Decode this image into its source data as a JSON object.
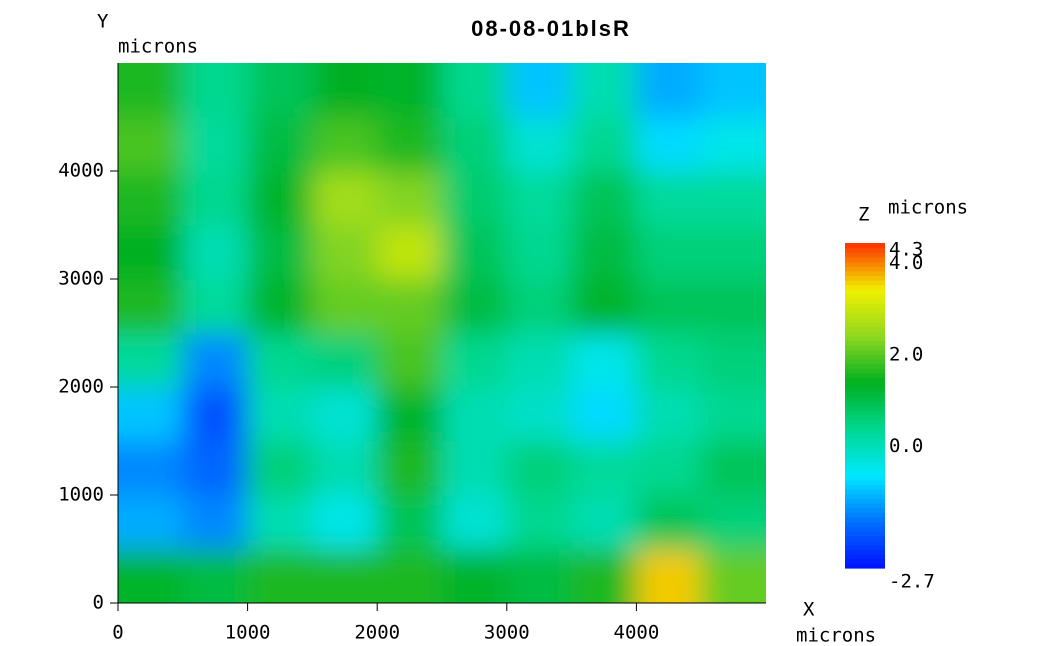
{
  "chart_data": {
    "type": "heatmap",
    "title": "08-08-01blsR",
    "xlabel": "X",
    "xlabel_unit": "microns",
    "ylabel": "Y",
    "ylabel_unit": "microns",
    "zlabel": "Z",
    "zlabel_unit": "microns",
    "x": [
      250,
      750,
      1250,
      1750,
      2250,
      2750,
      3250,
      3750,
      4250,
      4750
    ],
    "y": [
      250,
      750,
      1250,
      1750,
      2250,
      2750,
      3250,
      3750,
      4250,
      4750
    ],
    "z": [
      [
        1.2,
        1,
        1.5,
        1.5,
        1.5,
        1.2,
        1,
        1.5,
        3.5,
        2
      ],
      [
        -1.2,
        -1.5,
        0,
        -0.5,
        0.8,
        -0.3,
        0.3,
        0,
        0.8,
        0.5
      ],
      [
        -1.5,
        -1.8,
        0.5,
        0,
        1.5,
        0,
        0.5,
        0.2,
        0.3,
        0.8
      ],
      [
        -1,
        -2,
        0,
        -0.3,
        1.2,
        0,
        -0.2,
        -0.8,
        0,
        0.3
      ],
      [
        0.2,
        -1.5,
        0.3,
        0.5,
        1.8,
        0.3,
        0,
        -0.5,
        0.3,
        0.5
      ],
      [
        1.5,
        0.2,
        1.2,
        2,
        2,
        1,
        0.5,
        1.2,
        0.8,
        0.8
      ],
      [
        1.3,
        0,
        1,
        2.2,
        2.8,
        0.8,
        0.3,
        1,
        0.5,
        0.5
      ],
      [
        1.5,
        0.3,
        1.2,
        2.5,
        2.2,
        0.6,
        0.2,
        0.8,
        0.2,
        0.2
      ],
      [
        1.8,
        0.2,
        1,
        1.8,
        1.5,
        0.5,
        -0.3,
        0.3,
        -0.8,
        -0.5
      ],
      [
        1.5,
        0.3,
        0.8,
        1.3,
        1.2,
        0.3,
        -1,
        0,
        -1.2,
        -1
      ]
    ],
    "xlim": [
      0,
      5000
    ],
    "ylim": [
      0,
      5000
    ],
    "xticks": [
      0,
      1000,
      2000,
      3000,
      4000
    ],
    "yticks": [
      0,
      1000,
      2000,
      3000,
      4000
    ],
    "zlim": [
      -2.7,
      4.3
    ],
    "zticks": [
      4.3,
      {
        "value": 4,
        "label": "4.0"
      },
      {
        "value": 2,
        "label": "2.0"
      },
      {
        "value": 0,
        "label": "0.0"
      },
      -2.7
    ],
    "colorscale": [
      "#0010ff",
      "#0070ff",
      "#00e8ff",
      "#00d890",
      "#00b020",
      "#90d820",
      "#f0f000",
      "#ff3000"
    ]
  }
}
